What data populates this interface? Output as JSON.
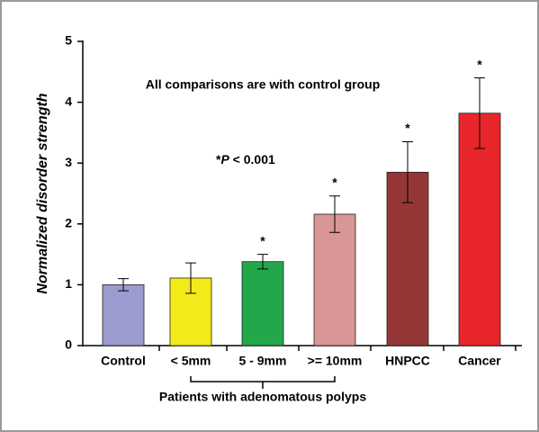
{
  "chart_data": {
    "type": "bar",
    "y_label": "Normalized disorder strength",
    "categories": [
      "Control",
      "< 5mm",
      "5 - 9mm",
      ">= 10mm",
      "HNPCC",
      "Cancer"
    ],
    "values": [
      1.0,
      1.11,
      1.38,
      2.16,
      2.85,
      3.82
    ],
    "errors": [
      0.1,
      0.25,
      0.12,
      0.3,
      0.5,
      0.58
    ],
    "colors": [
      "#9b9bcf",
      "#f3ea1a",
      "#22a84b",
      "#d99696",
      "#943636",
      "#e8262b"
    ],
    "significance": [
      null,
      null,
      "*",
      "*",
      "*",
      "*"
    ],
    "group_label": "Patients with adenomatous polyps",
    "annotation": "All comparisons are with control group",
    "p_note": [
      "*",
      "P",
      " < 0.001"
    ],
    "ylim": [
      0,
      5
    ],
    "yticks": [
      0,
      1,
      2,
      3,
      4,
      5
    ]
  }
}
